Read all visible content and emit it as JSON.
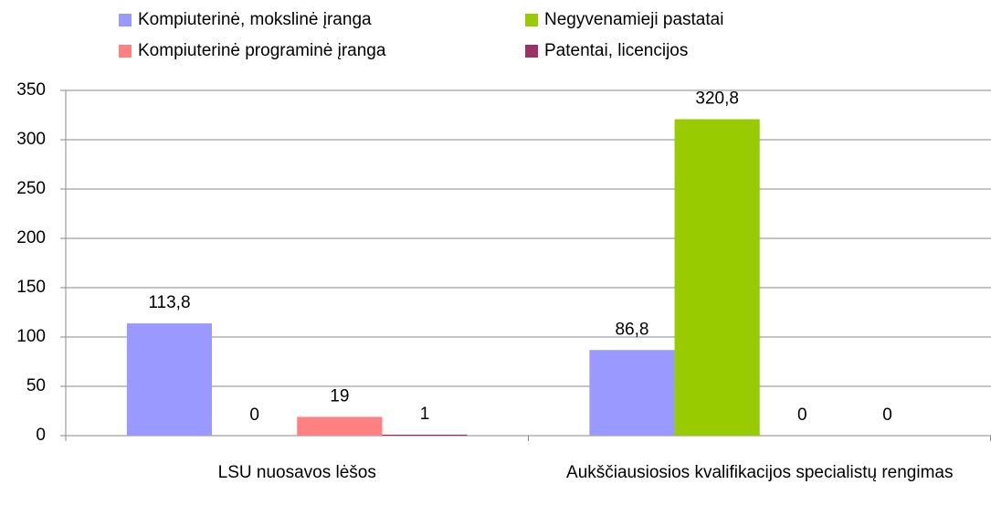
{
  "chart_data": {
    "type": "bar",
    "categories": [
      "LSU nuosavos lėšos",
      "Aukščiausiosios kvalifikacijos specialistų rengimas"
    ],
    "series": [
      {
        "name": "Kompiuterinė, mokslinė įranga",
        "color": "#9999ff",
        "values": [
          113.8,
          86.8
        ],
        "value_labels": [
          "113,8",
          "86,8"
        ]
      },
      {
        "name": "Negyvenamieji pastatai",
        "color": "#99cc00",
        "values": [
          0,
          320.8
        ],
        "value_labels": [
          "0",
          "320,8"
        ]
      },
      {
        "name": "Kompiuterinė programinė įranga",
        "color": "#ff8080",
        "values": [
          19,
          0
        ],
        "value_labels": [
          "19",
          "0"
        ]
      },
      {
        "name": "Patentai, licencijos",
        "color": "#993366",
        "values": [
          1,
          0
        ],
        "value_labels": [
          "1",
          "0"
        ]
      }
    ],
    "ylim": [
      0,
      350
    ],
    "yticks": [
      0,
      50,
      100,
      150,
      200,
      250,
      300,
      350
    ],
    "grid": true,
    "legend": "top"
  }
}
